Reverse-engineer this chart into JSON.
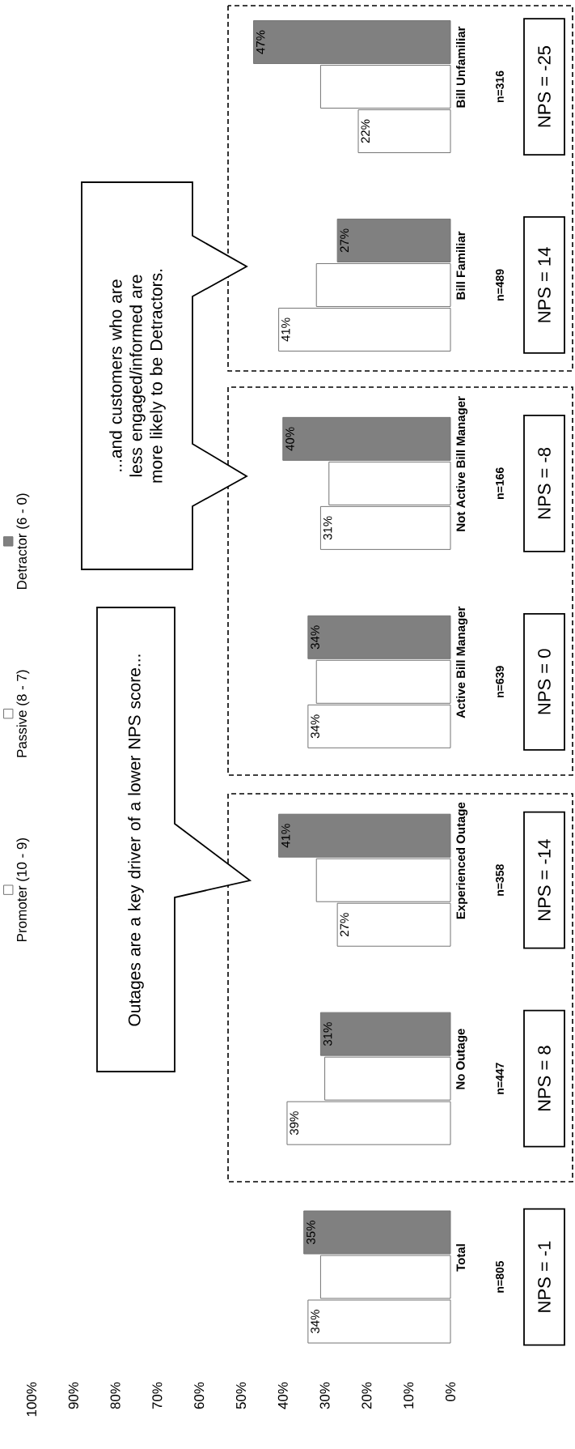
{
  "chart_data": {
    "type": "bar",
    "orientation": "horizontal",
    "categories": [
      "Bill Unfamiliar",
      "Bill Familiar",
      "Not Active Bill Manager",
      "Active Bill Manager",
      "Experienced Outage",
      "No Outage",
      "Total"
    ],
    "series": [
      {
        "name": "Promoter (10 - 9)",
        "color": "#ffffff",
        "values": [
          22,
          41,
          31,
          34,
          27,
          39,
          34
        ],
        "value_labels": [
          "22%",
          "41%",
          "31%",
          "34%",
          "27%",
          "39%",
          "34%"
        ]
      },
      {
        "name": "Passive (8 - 7)",
        "color": "#ffffff",
        "values": [
          31,
          32,
          29,
          32,
          32,
          30,
          31
        ],
        "value_labels": [
          null,
          null,
          null,
          null,
          null,
          null,
          null
        ]
      },
      {
        "name": "Detractor (6 - 0)",
        "color": "#808080",
        "values": [
          47,
          27,
          40,
          34,
          41,
          31,
          35
        ],
        "value_labels": [
          "47%",
          "27%",
          "40%",
          "34%",
          "41%",
          "31%",
          "35%"
        ]
      }
    ],
    "xlim": [
      100,
      0
    ],
    "xticks": [
      {
        "value": 0,
        "label": "0%"
      },
      {
        "value": 10,
        "label": "10%"
      },
      {
        "value": 20,
        "label": "20%"
      },
      {
        "value": 30,
        "label": "30%"
      },
      {
        "value": 40,
        "label": "40%"
      },
      {
        "value": 50,
        "label": "50%"
      },
      {
        "value": 60,
        "label": "60%"
      },
      {
        "value": 70,
        "label": "70%"
      },
      {
        "value": 80,
        "label": "80%"
      },
      {
        "value": 90,
        "label": "90%"
      },
      {
        "value": 100,
        "label": "100%"
      }
    ],
    "legend": "left",
    "grid": false,
    "annotations": [
      "Outages are a key driver of a lower NPS score...",
      "...and customers who are less engaged/informed are more likely to be Detractors.",
      "n=316",
      "NPS = -25",
      "n=489",
      "NPS = 14",
      "n=166",
      "NPS = -8",
      "n=639",
      "NPS = 0",
      "n=358",
      "NPS = -14",
      "n=447",
      "NPS = 8",
      "n=805",
      "NPS =  -1"
    ]
  }
}
